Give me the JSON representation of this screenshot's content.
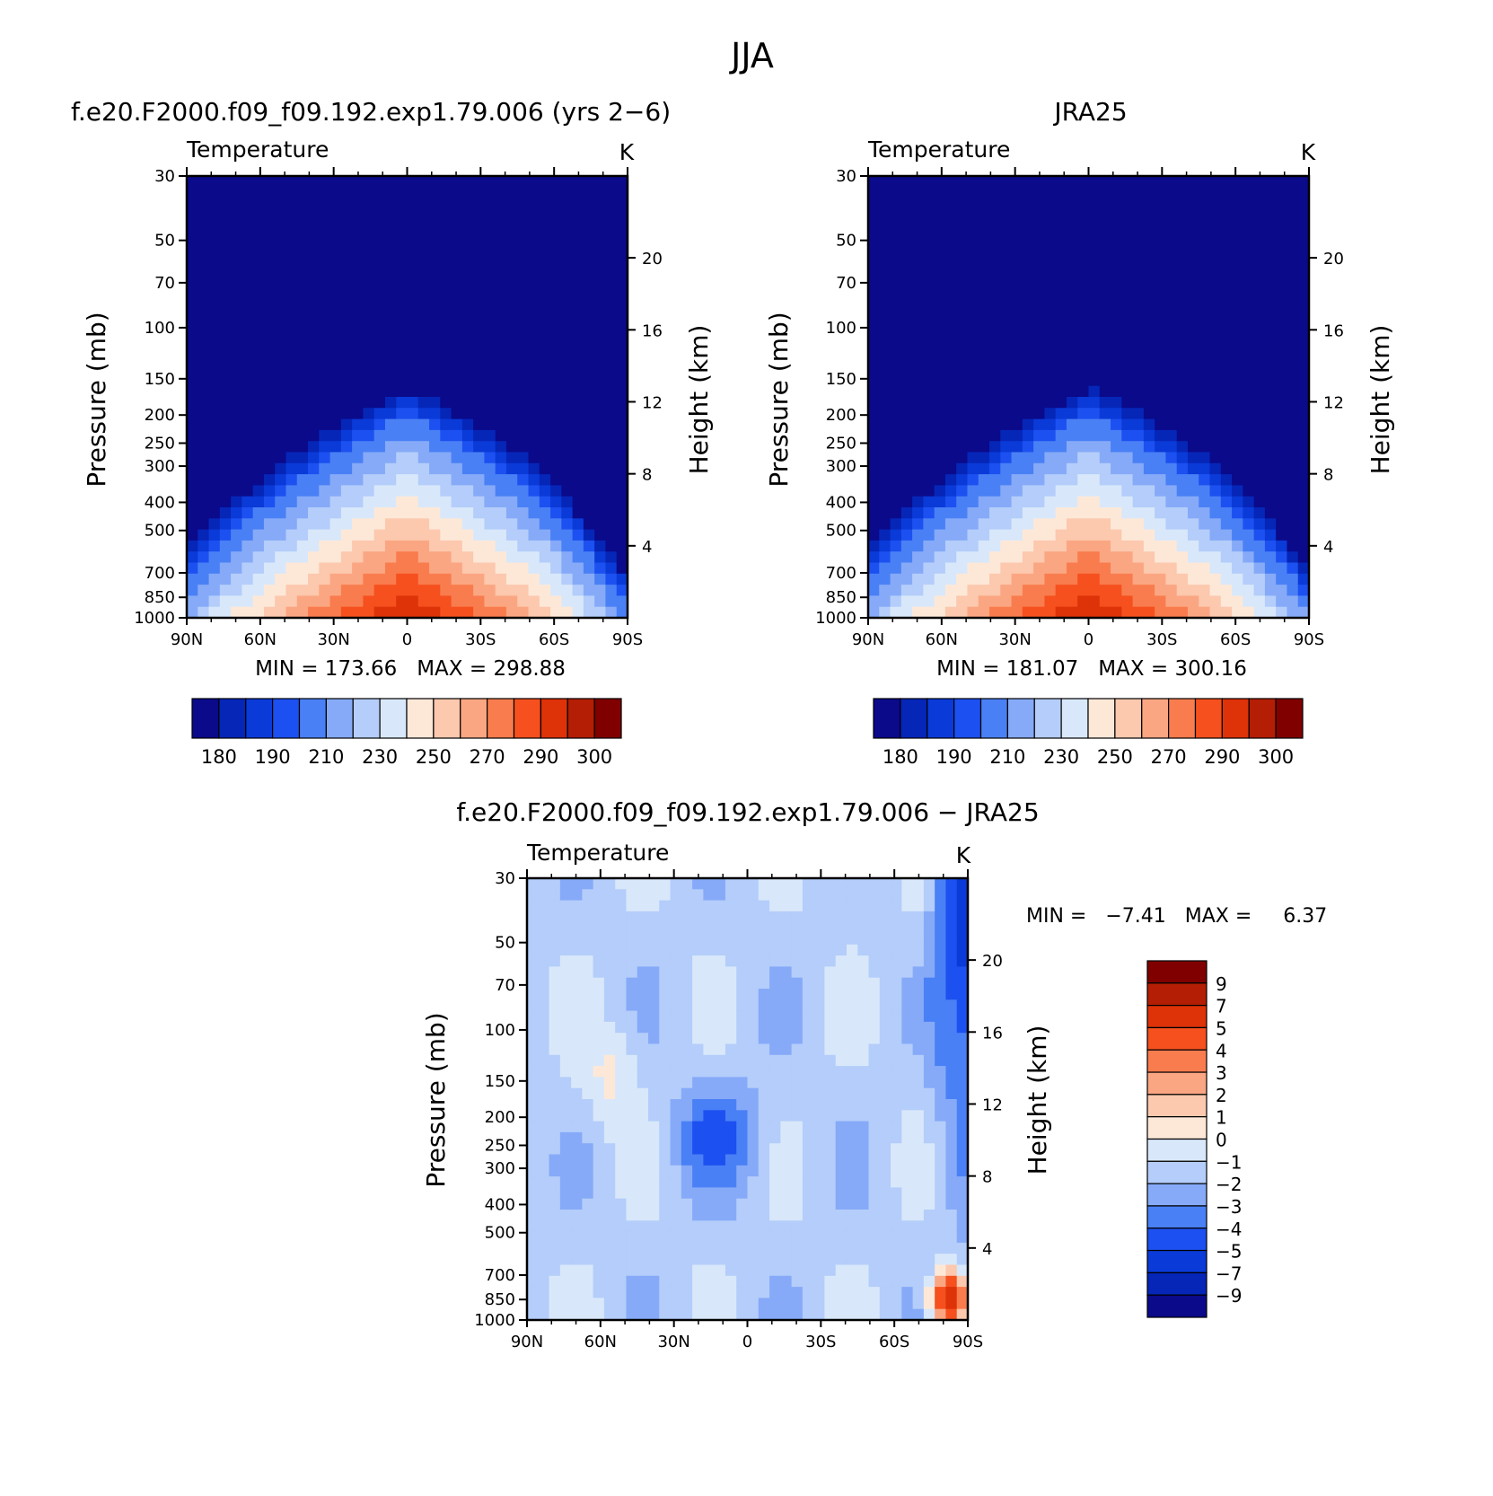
{
  "page": {
    "title": "JJA"
  },
  "colors": {
    "abs_palette": [
      "#0a0a8a",
      "#0626b8",
      "#0a3ad8",
      "#1c50f0",
      "#4a80f5",
      "#86aaf8",
      "#b4cdfa",
      "#d8e8fa",
      "#fde8d8",
      "#fcc8ae",
      "#fba682",
      "#f97c4e",
      "#f5501e",
      "#de3208",
      "#b41e04",
      "#800000"
    ],
    "diff_palette": [
      "#800000",
      "#b41e04",
      "#de3208",
      "#f5501e",
      "#f97c4e",
      "#fba682",
      "#fcc8ae",
      "#fde8d8",
      "#d8e8fa",
      "#b4cdfa",
      "#86aaf8",
      "#4a80f5",
      "#1c50f0",
      "#0a3ad8",
      "#0626b8",
      "#0a0a8a"
    ]
  },
  "chart_data": [
    {
      "id": "model",
      "type": "heatmap",
      "title": "f.e20.F2000.f09_f09.192.exp1.79.006 (yrs 2−6)",
      "variable": "Temperature",
      "units": "K",
      "xlabel": "",
      "ylabel": "Pressure (mb)",
      "ylabel_right": "Height (km)",
      "x_ticks": [
        "90N",
        "60N",
        "30N",
        "0",
        "30S",
        "60S",
        "90S"
      ],
      "y_ticks": [
        30,
        50,
        70,
        100,
        150,
        200,
        250,
        300,
        400,
        500,
        700,
        850,
        1000
      ],
      "height_ticks": [
        20,
        16,
        12,
        8,
        4
      ],
      "min": 173.66,
      "max": 298.88,
      "stats_text": "MIN = 173.66   MAX = 298.88",
      "colorbar_labels": [
        "180",
        "190",
        "210",
        "230",
        "250",
        "270",
        "290",
        "300"
      ],
      "contour_levels": [
        175,
        180,
        185,
        190,
        200,
        210,
        220,
        230,
        240,
        250,
        260,
        270,
        280,
        290,
        295,
        300
      ]
    },
    {
      "id": "obs",
      "type": "heatmap",
      "title": "JRA25",
      "variable": "Temperature",
      "units": "K",
      "xlabel": "",
      "ylabel": "Pressure (mb)",
      "ylabel_right": "Height (km)",
      "x_ticks": [
        "90N",
        "60N",
        "30N",
        "0",
        "30S",
        "60S",
        "90S"
      ],
      "y_ticks": [
        30,
        50,
        70,
        100,
        150,
        200,
        250,
        300,
        400,
        500,
        700,
        850,
        1000
      ],
      "height_ticks": [
        20,
        16,
        12,
        8,
        4
      ],
      "min": 181.07,
      "max": 300.16,
      "stats_text": "MIN = 181.07   MAX = 300.16",
      "colorbar_labels": [
        "180",
        "190",
        "210",
        "230",
        "250",
        "270",
        "290",
        "300"
      ],
      "contour_levels": [
        175,
        180,
        185,
        190,
        200,
        210,
        220,
        230,
        240,
        250,
        260,
        270,
        280,
        290,
        295,
        300
      ]
    },
    {
      "id": "diff",
      "type": "heatmap",
      "title": "f.e20.F2000.f09_f09.192.exp1.79.006 − JRA25",
      "variable": "Temperature",
      "units": "K",
      "xlabel": "",
      "ylabel": "Pressure (mb)",
      "ylabel_right": "Height (km)",
      "x_ticks": [
        "90N",
        "60N",
        "30N",
        "0",
        "30S",
        "60S",
        "90S"
      ],
      "y_ticks": [
        30,
        50,
        70,
        100,
        150,
        200,
        250,
        300,
        400,
        500,
        700,
        850,
        1000
      ],
      "height_ticks": [
        20,
        16,
        12,
        8,
        4
      ],
      "min": -7.41,
      "max": 6.37,
      "stats_text": "MIN =   −7.41   MAX =     6.37",
      "colorbar_labels": [
        "9",
        "7",
        "5",
        "4",
        "3",
        "2",
        "1",
        "0",
        "−1",
        "−2",
        "−3",
        "−4",
        "−5",
        "−7",
        "−9"
      ],
      "contour_levels": [
        -9,
        -7,
        -5,
        -4,
        -3,
        -2,
        -1,
        0,
        1,
        2,
        3,
        4,
        5,
        7,
        9
      ]
    }
  ]
}
